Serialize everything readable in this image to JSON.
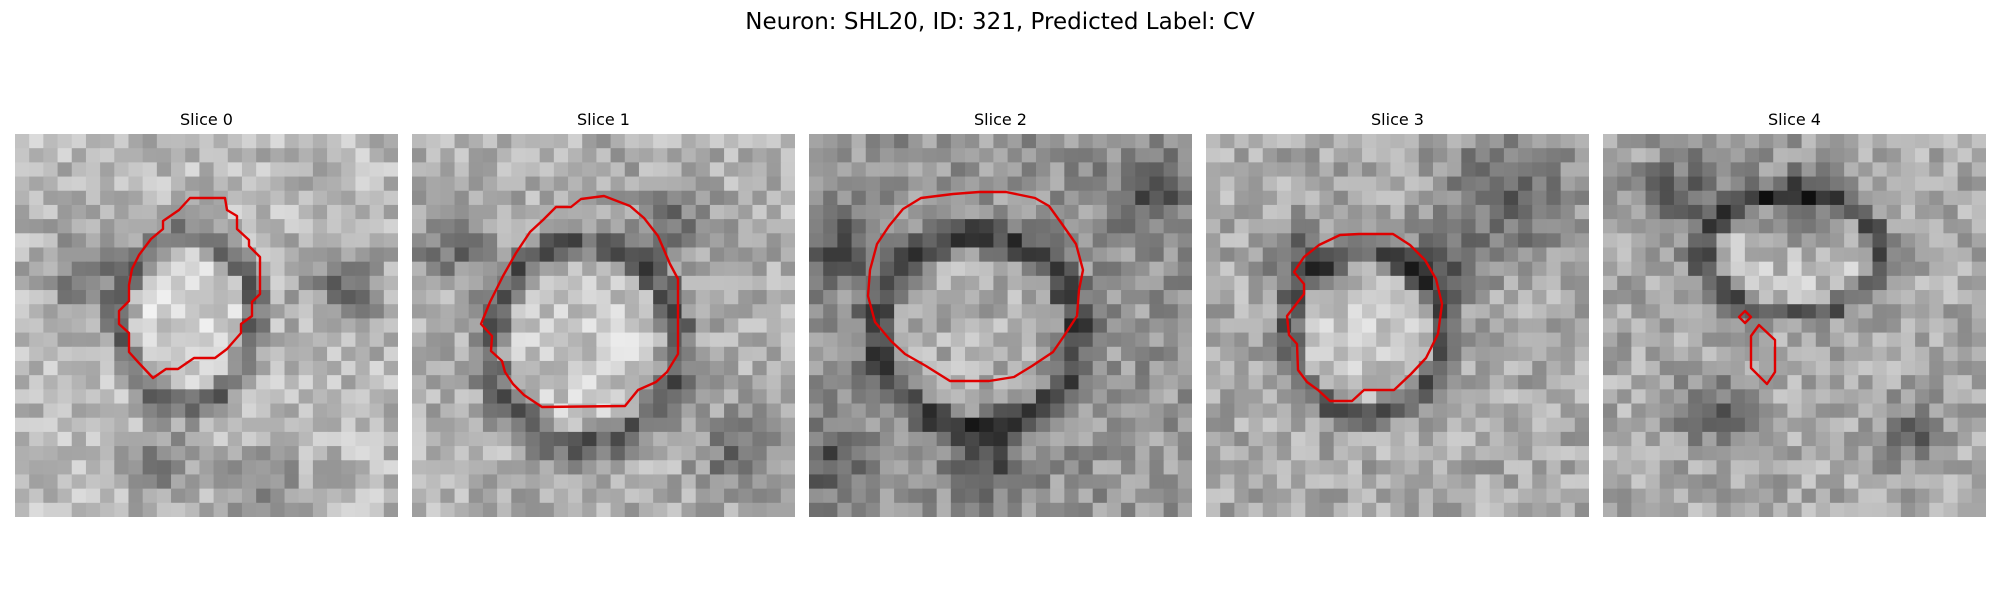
{
  "figure": {
    "title": "Neuron: SHL20, ID: 321, Predicted Label: CV",
    "contour_color": "#e00000"
  },
  "panels": [
    {
      "title": "Slice 0"
    },
    {
      "title": "Slice 1"
    },
    {
      "title": "Slice 2"
    },
    {
      "title": "Slice 3"
    },
    {
      "title": "Slice 4"
    }
  ]
}
